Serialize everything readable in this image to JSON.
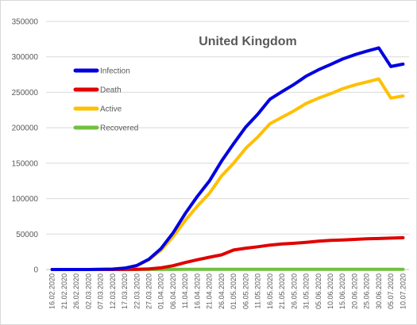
{
  "chart_data": {
    "type": "line",
    "title": "United Kingdom",
    "xlabel": "",
    "ylabel": "",
    "ylim": [
      0,
      350000
    ],
    "yticks": [
      0,
      50000,
      100000,
      150000,
      200000,
      250000,
      300000,
      350000
    ],
    "ytick_labels": [
      "0",
      "50000",
      "100000",
      "150000",
      "200000",
      "250000",
      "300000",
      "350000"
    ],
    "grid": true,
    "legend_position": "top-left",
    "x": [
      "16.02.2020",
      "21.02.2020",
      "26.02.2020",
      "02.03.2020",
      "07.03.2020",
      "12.03.2020",
      "17.03.2020",
      "22.03.2020",
      "27.03.2020",
      "01.04.2020",
      "06.04.2020",
      "11.04.2020",
      "16.04.2020",
      "21.04.2020",
      "26.04.2020",
      "01.05.2020",
      "06.05.2020",
      "11.05.2020",
      "16.05.2020",
      "21.05.2020",
      "26.05.2020",
      "31.05.2020",
      "05.06.2020",
      "10.06.2020",
      "15.06.2020",
      "20.06.2020",
      "25.06.2020",
      "30.06.2020",
      "05.07.2020",
      "10.07.2020"
    ],
    "series": [
      {
        "name": "Infection",
        "color": "#0000E0",
        "values": [
          9,
          9,
          13,
          40,
          206,
          590,
          1950,
          5683,
          14543,
          29474,
          51608,
          78991,
          103093,
          124743,
          152840,
          177454,
          201101,
          219183,
          240161,
          250908,
          261184,
          272826,
          281661,
          289140,
          296857,
          302879,
          307980,
          312654,
          286349,
          289678
        ]
      },
      {
        "name": "Death",
        "color": "#E00000",
        "values": [
          0,
          0,
          0,
          0,
          2,
          10,
          71,
          281,
          759,
          2352,
          5373,
          9875,
          13729,
          17337,
          20732,
          27510,
          30076,
          32065,
          34466,
          36042,
          37048,
          38376,
          39904,
          41128,
          41736,
          42461,
          43230,
          43730,
          44305,
          44798
        ]
      },
      {
        "name": "Active",
        "color": "#FFC000",
        "values": [
          9,
          9,
          13,
          40,
          200,
          570,
          1870,
          5380,
          13760,
          27100,
          46200,
          69100,
          89300,
          107300,
          132000,
          150000,
          171000,
          187000,
          205600,
          214800,
          224000,
          234300,
          241700,
          247900,
          255000,
          260300,
          264600,
          268800,
          241900,
          244800
        ]
      },
      {
        "name": "Recovered",
        "color": "#70C040",
        "values": [
          0,
          0,
          8,
          8,
          18,
          18,
          52,
          135,
          135,
          135,
          135,
          344,
          344,
          344,
          344,
          344,
          344,
          344,
          344,
          344,
          344,
          344,
          344,
          344,
          344,
          344,
          344,
          344,
          344,
          344
        ]
      }
    ]
  }
}
